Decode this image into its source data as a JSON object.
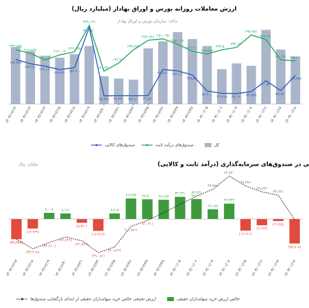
{
  "chart_data": [
    {
      "type": "bar_line",
      "title": "ارزش معاملات روزانه بورس و اوراق بهادار (میلیارد ریال)",
      "source": "مأخذ: سازمان بورس و اوراق بهادار",
      "categories": [
        "۱۴۰۳/۱۲/۱۲",
        "۱۴۰۳/۱۲/۱۳",
        "۱۴۰۳/۱۲/۱۴",
        "۱۴۰۳/۱۲/۱۵",
        "۱۴۰۳/۱۲/۱۸",
        "۱۴۰۳/۱۲/۱۹",
        "۱۴۰۳/۱۲/۲۰",
        "۱۴۰۳/۱۲/۲۱",
        "۱۴۰۳/۱۲/۲۲",
        "۱۴۰۳/۱۲/۲۵",
        "۱۴۰۳/۱۲/۲۶",
        "۱۴۰۳/۱۲/۲۷",
        "۱۴۰۳/۱۲/۲۸",
        "۱۴۰۴/۰۱/۰۵",
        "۱۴۰۴/۰۱/۰۶",
        "۱۴۰۴/۰۱/۰۷",
        "۱۴۰۴/۰۱/۰۸",
        "۱۴۰۴/۰۱/۱۶",
        "۱۴۰۴/۰۱/۱۷",
        "۱۴۰۴/۰۱/۱۸"
      ],
      "series": [
        {
          "name": "کل",
          "type": "bar",
          "color": "#a9b5ca",
          "values": [
            245000,
            228000,
            205000,
            200000,
            215000,
            250000,
            120000,
            110000,
            105000,
            240000,
            270000,
            310000,
            280000,
            250000,
            150000,
            175000,
            165000,
            320000,
            235000,
            205000
          ]
        },
        {
          "name": "صندوق‌های درآمد ثابت",
          "type": "line",
          "color": "#27a85f",
          "values": [
            233855,
            218825,
            189685,
            212012,
            224845,
            339169,
            141720,
            176900,
            233384,
            274946,
            281035,
            258067,
            227310,
            215587,
            233500,
            244120,
            297951,
            277950,
            190350,
            185900
          ],
          "value_labels": [
            "۲۳۳,۸۵۵",
            "۲۱۸,۸۲۵",
            "۱۸۹,۶۸۵",
            "۲۱۲,۰۱۲",
            "۲۲۴,۸۴۵",
            "۳۳۹,۱۶۹",
            "۱۴۱,۷۲۰",
            "۱۷۶,۹۰۰",
            "۲۳۳,۳۸۴",
            "۲۷۴,۹۴۶",
            "۲۸۱,۰۳۵",
            "۲۵۸,۰۶۷",
            "۲۲۷,۳۱۰",
            "۲۱۵,۵۸۷",
            "۲۳۳,۵۰۰",
            "۲۴۴,۱۲۰",
            "۲۹۷,۹۵۱",
            "۲۷۷,۹۵۰",
            "۱۹۰,۳۵۰",
            "۱۸۵,۹۰۰"
          ]
        },
        {
          "name": "صندوق‌های کالایی",
          "type": "line",
          "color": "#2f5fb9",
          "values": [
            192787,
            173960,
            163180,
            148320,
            156900,
            330120,
            35391,
            36240,
            35910,
            36830,
            148810,
            143060,
            125520,
            56400,
            46215,
            45030,
            53559,
            100520,
            57970,
            123459
          ],
          "value_labels": [
            "۱۹۲,۷۸۷",
            "۱۷۳,۹۶۰",
            "۱۶۳,۱۸۰",
            "۱۴۸,۳۲۰",
            "۱۵۶,۹۰۰",
            "۳۳۰,۱۲۰",
            "۳۵,۳۹۱",
            "۳۶,۲۴۰",
            "۳۵,۹۱۰",
            "۳۶,۸۳۰",
            "۱۴۸,۸۱۰",
            "۱۴۳,۰۶۰",
            "۱۲۵,۵۲۰",
            "۵۶,۴۰۰",
            "۴۶,۲۱۵",
            "۴۵,۰۳۰",
            "۵۳,۵۵۹",
            "۱۰۰,۵۲۰",
            "۵۷,۹۷۰",
            "۱۲۳,۴۵۹"
          ]
        }
      ],
      "holiday_marks": {
        "indices": [
          6,
          7,
          8,
          9
        ],
        "label": "*"
      },
      "ylim": [
        0,
        360000
      ]
    },
    {
      "type": "bar_line",
      "title": "خالص خرید سهامداران حقیقی در صندوق‌های سرمایه‌گذاری (درآمد ثابت و کالایی)",
      "subtitle": "میلیارد ریال",
      "categories": [
        "۱۴۰۳/۱۲/۱۷",
        "۱۴۰۳/۱۲/۱۸",
        "۱۴۰۳/۱۲/۱۹",
        "۱۴۰۳/۱۲/۲۰",
        "۱۴۰۳/۱۲/۲۱",
        "۱۴۰۳/۱۲/۲۲",
        "۱۴۰۳/۱۲/۲۵",
        "۱۴۰۳/۱۲/۲۶",
        "۱۴۰۳/۱۲/۲۷",
        "۱۴۰۳/۱۲/۲۸",
        "۱۴۰۴/۰۱/۰۵",
        "۱۴۰۴/۰۱/۰۶",
        "۱۴۰۴/۰۱/۰۷",
        "۱۴۰۴/۰۱/۰۸",
        "۱۴۰۴/۰۱/۱۵",
        "۱۴۰۴/۰۱/۱۶",
        "۱۴۰۴/۰۱/۱۷",
        "۱۴۰۴/۰۱/۱۸"
      ],
      "series": [
        {
          "name": "خالص ارزش خرید سهامداران حقیقی",
          "type": "bar",
          "color": "#3d9b3d",
          "negative_color": "#e14b3d",
          "values": [
            -29479,
            -13939,
            9008,
            8161,
            -5520,
            -17312,
            8215,
            29995,
            28800,
            28187,
            32431,
            29100,
            14188,
            22443,
            -16911,
            -9143,
            -2965,
            -35808
          ],
          "value_labels": [
            "(۲۹,۴۷۹)",
            "(۱۳,۹۳۹)",
            "۹,۰۰۸",
            "۸,۱۶۱",
            "(۵,۵۲۰)",
            "(۱۷,۳۱۲)",
            "۸,۲۱۵",
            "۲۹,۹۹۵",
            "۲۸,۸۰۰",
            "۲۸,۱۸۷",
            "۳۲,۴۳۱",
            "۲۹,۱۰۰",
            "۱۴,۱۸۸",
            "۲۲,۴۴۳",
            "(۱۶,۹۱۱)",
            "(۹,۱۴۳)",
            "(۲,۹۶۵)",
            "(۳۵,۸۰۸)"
          ]
        },
        {
          "name": "ارزش تجمعی خالص خرید سهامداران حقیقی از ابتدای بازگشایی صندوق‌ها",
          "type": "line",
          "style": "dotted",
          "color": "#222222",
          "values": [
            -29479,
            -43418,
            -34410,
            -26249,
            -31769,
            -49081,
            -40866,
            -10871,
            -2071,
            9266,
            21453,
            33431,
            43389,
            62730,
            48389,
            39736,
            34771,
            -963
          ],
          "value_labels": [
            "(۲۹,۴۷۹)",
            "(۴۳,۴۱۸)",
            "(۳۴,۴۱۰)",
            "(۲۶,۲۴۹)",
            "(۳۱,۷۶۹)",
            "(۴۹,۰۸۱)",
            "(۴۰,۸۶۶)",
            "(۱۰,۸۷۱)",
            "(۲,۰۷۱)",
            "۹,۲۶۶",
            "۲۱,۴۵۳",
            "۳۳,۴۳۱",
            "۴۳,۳۸۹",
            "۶۲,۷۳۰",
            "۴۸,۳۸۹",
            "۳۹,۷۳۶",
            "۳۴,۷۷۱",
            "(۹۶۳)"
          ]
        }
      ],
      "ylim": [
        -55000,
        65000
      ]
    }
  ]
}
